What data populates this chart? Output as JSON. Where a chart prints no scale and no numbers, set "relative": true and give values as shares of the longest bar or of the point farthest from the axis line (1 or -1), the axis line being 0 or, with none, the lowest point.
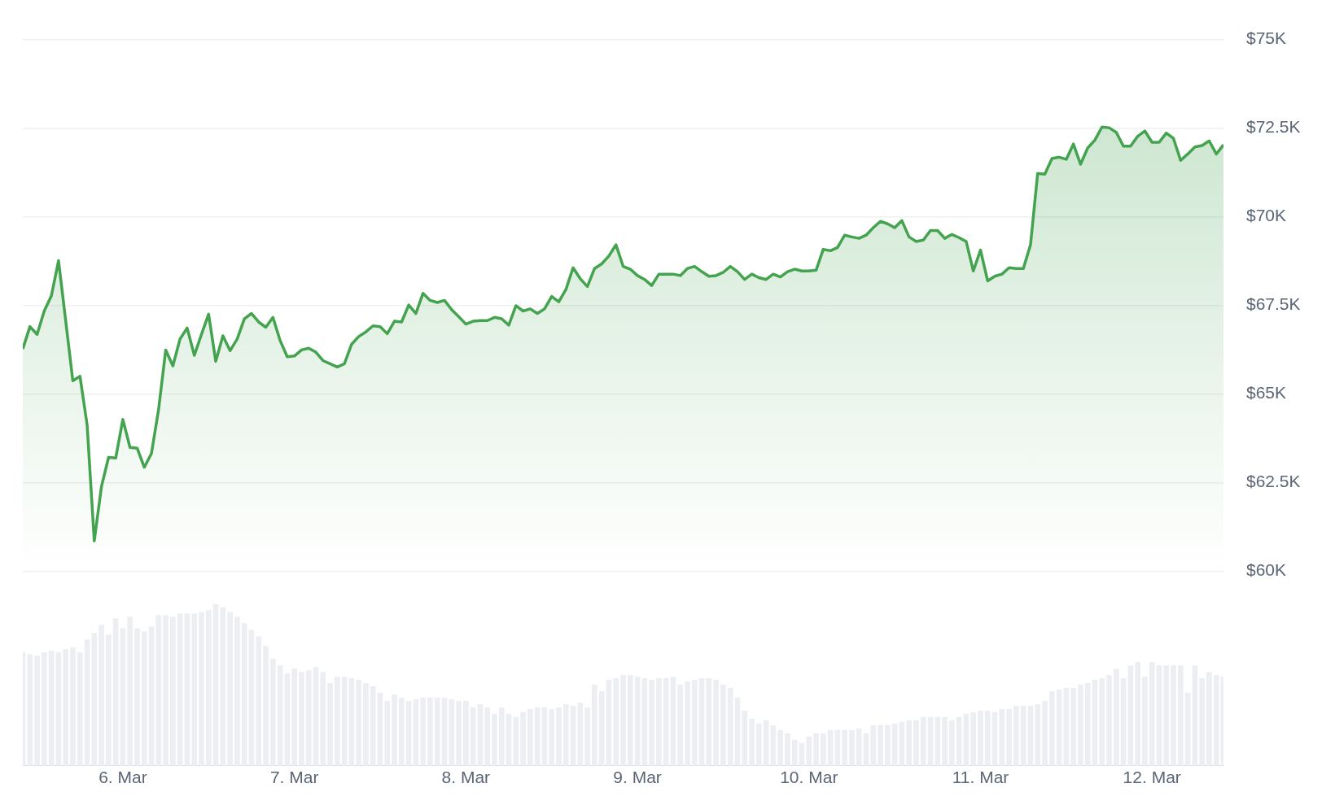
{
  "chart_data": [
    {
      "type": "area",
      "xlim": [
        "--03-05T10:00",
        "--03-12T10:00"
      ],
      "ylim": [
        60,
        75
      ],
      "yticks": [
        {
          "value": 60,
          "label": "$60K"
        },
        {
          "value": 62.5,
          "label": "$62.5K"
        },
        {
          "value": 65,
          "label": "$65K"
        },
        {
          "value": 67.5,
          "label": "$67.5K"
        },
        {
          "value": 70,
          "label": "$70K"
        },
        {
          "value": 72.5,
          "label": "$72.5K"
        },
        {
          "value": 75,
          "label": "$75K"
        }
      ],
      "tick_labels": "y",
      "grid": "y",
      "legend": false,
      "marker": "none",
      "line_style": "solid",
      "x": [
        "--03-05T10:00",
        "--03-05T11:00",
        "--03-05T12:00",
        "--03-05T13:00",
        "--03-05T14:00",
        "--03-05T15:00",
        "--03-05T16:00",
        "--03-05T17:00",
        "--03-05T18:00",
        "--03-05T19:00",
        "--03-05T20:00",
        "--03-05T21:00",
        "--03-05T22:00",
        "--03-05T23:00",
        "--03-06T00:00",
        "--03-06T01:00",
        "--03-06T02:00",
        "--03-06T03:00",
        "--03-06T04:00",
        "--03-06T05:00",
        "--03-06T06:00",
        "--03-06T07:00",
        "--03-06T08:00",
        "--03-06T09:00",
        "--03-06T10:00",
        "--03-06T11:00",
        "--03-06T12:00",
        "--03-06T13:00",
        "--03-06T14:00",
        "--03-06T15:00",
        "--03-06T16:00",
        "--03-06T17:00",
        "--03-06T18:00",
        "--03-06T19:00",
        "--03-06T20:00",
        "--03-06T21:00",
        "--03-06T22:00",
        "--03-06T23:00",
        "--03-07T00:00",
        "--03-07T01:00",
        "--03-07T02:00",
        "--03-07T03:00",
        "--03-07T04:00",
        "--03-07T05:00",
        "--03-07T06:00",
        "--03-07T07:00",
        "--03-07T08:00",
        "--03-07T09:00",
        "--03-07T10:00",
        "--03-07T11:00",
        "--03-07T12:00",
        "--03-07T13:00",
        "--03-07T14:00",
        "--03-07T15:00",
        "--03-07T16:00",
        "--03-07T17:00",
        "--03-07T18:00",
        "--03-07T19:00",
        "--03-07T20:00",
        "--03-07T21:00",
        "--03-07T22:00",
        "--03-07T23:00",
        "--03-08T00:00",
        "--03-08T01:00",
        "--03-08T02:00",
        "--03-08T03:00",
        "--03-08T04:00",
        "--03-08T05:00",
        "--03-08T06:00",
        "--03-08T07:00",
        "--03-08T08:00",
        "--03-08T09:00",
        "--03-08T10:00",
        "--03-08T11:00",
        "--03-08T12:00",
        "--03-08T13:00",
        "--03-08T14:00",
        "--03-08T15:00",
        "--03-08T16:00",
        "--03-08T17:00",
        "--03-08T18:00",
        "--03-08T19:00",
        "--03-08T20:00",
        "--03-08T21:00",
        "--03-08T22:00",
        "--03-08T23:00",
        "--03-09T00:00",
        "--03-09T01:00",
        "--03-09T02:00",
        "--03-09T03:00",
        "--03-09T04:00",
        "--03-09T05:00",
        "--03-09T06:00",
        "--03-09T07:00",
        "--03-09T08:00",
        "--03-09T09:00",
        "--03-09T10:00",
        "--03-09T11:00",
        "--03-09T12:00",
        "--03-09T13:00",
        "--03-09T14:00",
        "--03-09T15:00",
        "--03-09T16:00",
        "--03-09T17:00",
        "--03-09T18:00",
        "--03-09T19:00",
        "--03-09T20:00",
        "--03-09T21:00",
        "--03-09T22:00",
        "--03-09T23:00",
        "--03-10T00:00",
        "--03-10T01:00",
        "--03-10T02:00",
        "--03-10T03:00",
        "--03-10T04:00",
        "--03-10T05:00",
        "--03-10T06:00",
        "--03-10T07:00",
        "--03-10T08:00",
        "--03-10T09:00",
        "--03-10T10:00",
        "--03-10T11:00",
        "--03-10T12:00",
        "--03-10T13:00",
        "--03-10T14:00",
        "--03-10T15:00",
        "--03-10T16:00",
        "--03-10T17:00",
        "--03-10T18:00",
        "--03-10T19:00",
        "--03-10T20:00",
        "--03-10T21:00",
        "--03-10T22:00",
        "--03-10T23:00",
        "--03-11T00:00",
        "--03-11T01:00",
        "--03-11T02:00",
        "--03-11T03:00",
        "--03-11T04:00",
        "--03-11T05:00",
        "--03-11T06:00",
        "--03-11T07:00",
        "--03-11T08:00",
        "--03-11T09:00",
        "--03-11T10:00",
        "--03-11T11:00",
        "--03-11T12:00",
        "--03-11T13:00",
        "--03-11T14:00",
        "--03-11T15:00",
        "--03-11T16:00",
        "--03-11T17:00",
        "--03-11T18:00",
        "--03-11T19:00",
        "--03-11T20:00",
        "--03-11T21:00",
        "--03-11T22:00",
        "--03-11T23:00",
        "--03-12T00:00",
        "--03-12T01:00",
        "--03-12T02:00",
        "--03-12T03:00",
        "--03-12T04:00",
        "--03-12T05:00",
        "--03-12T06:00",
        "--03-12T07:00",
        "--03-12T08:00",
        "--03-12T09:00",
        "--03-12T10:00"
      ],
      "series": [
        {
          "color": "#44a34f",
          "values": [
            66.27,
            66.9,
            66.68,
            67.34,
            67.77,
            68.76,
            67.07,
            65.37,
            65.5,
            64.13,
            60.85,
            62.38,
            63.21,
            63.19,
            64.28,
            63.49,
            63.47,
            62.93,
            63.32,
            64.56,
            66.24,
            65.79,
            66.55,
            66.86,
            66.09,
            66.68,
            67.25,
            65.92,
            66.64,
            66.22,
            66.55,
            67.12,
            67.27,
            67.03,
            66.88,
            67.16,
            66.51,
            66.05,
            66.07,
            66.24,
            66.29,
            66.18,
            65.94,
            65.85,
            65.76,
            65.85,
            66.4,
            66.62,
            66.75,
            66.92,
            66.9,
            66.7,
            67.05,
            67.03,
            67.51,
            67.27,
            67.84,
            67.64,
            67.58,
            67.64,
            67.38,
            67.18,
            66.97,
            67.05,
            67.07,
            67.07,
            67.16,
            67.12,
            66.94,
            67.49,
            67.34,
            67.4,
            67.27,
            67.4,
            67.75,
            67.6,
            67.95,
            68.56,
            68.25,
            68.03,
            68.54,
            68.67,
            68.89,
            69.21,
            68.6,
            68.52,
            68.34,
            68.23,
            68.06,
            68.38,
            68.38,
            68.38,
            68.34,
            68.54,
            68.6,
            68.45,
            68.32,
            68.34,
            68.43,
            68.6,
            68.45,
            68.23,
            68.38,
            68.28,
            68.23,
            68.38,
            68.3,
            68.45,
            68.52,
            68.47,
            68.47,
            68.49,
            69.08,
            69.04,
            69.13,
            69.48,
            69.43,
            69.39,
            69.48,
            69.69,
            69.87,
            69.8,
            69.69,
            69.89,
            69.43,
            69.3,
            69.34,
            69.61,
            69.61,
            69.39,
            69.5,
            69.41,
            69.3,
            68.47,
            69.06,
            68.19,
            68.32,
            68.38,
            68.56,
            68.54,
            68.54,
            69.21,
            71.22,
            71.2,
            71.64,
            71.68,
            71.62,
            72.05,
            71.48,
            71.94,
            72.16,
            72.53,
            72.51,
            72.38,
            71.99,
            71.99,
            72.27,
            72.42,
            72.1,
            72.1,
            72.36,
            72.21,
            71.59,
            71.77,
            71.97,
            72.01,
            72.14,
            71.77,
            72.03
          ]
        }
      ]
    },
    {
      "type": "bar",
      "relative": true,
      "xlim": [
        "--03-05T10:00",
        "--03-12T10:00"
      ],
      "xticks": [
        {
          "value": "--03-06",
          "label": "6. Mar"
        },
        {
          "value": "--03-07",
          "label": "7. Mar"
        },
        {
          "value": "--03-08",
          "label": "8. Mar"
        },
        {
          "value": "--03-09",
          "label": "9. Mar"
        },
        {
          "value": "--03-10",
          "label": "10. Mar"
        },
        {
          "value": "--03-11",
          "label": "11. Mar"
        },
        {
          "value": "--03-12",
          "label": "12. Mar"
        }
      ],
      "tick_labels": "x",
      "grid": false,
      "legend": false,
      "x": [
        "--03-05T10:00",
        "--03-05T11:00",
        "--03-05T12:00",
        "--03-05T13:00",
        "--03-05T14:00",
        "--03-05T15:00",
        "--03-05T16:00",
        "--03-05T17:00",
        "--03-05T18:00",
        "--03-05T19:00",
        "--03-05T20:00",
        "--03-05T21:00",
        "--03-05T22:00",
        "--03-05T23:00",
        "--03-06T00:00",
        "--03-06T01:00",
        "--03-06T02:00",
        "--03-06T03:00",
        "--03-06T04:00",
        "--03-06T05:00",
        "--03-06T06:00",
        "--03-06T07:00",
        "--03-06T08:00",
        "--03-06T09:00",
        "--03-06T10:00",
        "--03-06T11:00",
        "--03-06T12:00",
        "--03-06T13:00",
        "--03-06T14:00",
        "--03-06T15:00",
        "--03-06T16:00",
        "--03-06T17:00",
        "--03-06T18:00",
        "--03-06T19:00",
        "--03-06T20:00",
        "--03-06T21:00",
        "--03-06T22:00",
        "--03-06T23:00",
        "--03-07T00:00",
        "--03-07T01:00",
        "--03-07T02:00",
        "--03-07T03:00",
        "--03-07T04:00",
        "--03-07T05:00",
        "--03-07T06:00",
        "--03-07T07:00",
        "--03-07T08:00",
        "--03-07T09:00",
        "--03-07T10:00",
        "--03-07T11:00",
        "--03-07T12:00",
        "--03-07T13:00",
        "--03-07T14:00",
        "--03-07T15:00",
        "--03-07T16:00",
        "--03-07T17:00",
        "--03-07T18:00",
        "--03-07T19:00",
        "--03-07T20:00",
        "--03-07T21:00",
        "--03-07T22:00",
        "--03-07T23:00",
        "--03-08T00:00",
        "--03-08T01:00",
        "--03-08T02:00",
        "--03-08T03:00",
        "--03-08T04:00",
        "--03-08T05:00",
        "--03-08T06:00",
        "--03-08T07:00",
        "--03-08T08:00",
        "--03-08T09:00",
        "--03-08T10:00",
        "--03-08T11:00",
        "--03-08T12:00",
        "--03-08T13:00",
        "--03-08T14:00",
        "--03-08T15:00",
        "--03-08T16:00",
        "--03-08T17:00",
        "--03-08T18:00",
        "--03-08T19:00",
        "--03-08T20:00",
        "--03-08T21:00",
        "--03-08T22:00",
        "--03-08T23:00",
        "--03-09T00:00",
        "--03-09T01:00",
        "--03-09T02:00",
        "--03-09T03:00",
        "--03-09T04:00",
        "--03-09T05:00",
        "--03-09T06:00",
        "--03-09T07:00",
        "--03-09T08:00",
        "--03-09T09:00",
        "--03-09T10:00",
        "--03-09T11:00",
        "--03-09T12:00",
        "--03-09T13:00",
        "--03-09T14:00",
        "--03-09T15:00",
        "--03-09T16:00",
        "--03-09T17:00",
        "--03-09T18:00",
        "--03-09T19:00",
        "--03-09T20:00",
        "--03-09T21:00",
        "--03-09T22:00",
        "--03-09T23:00",
        "--03-10T00:00",
        "--03-10T01:00",
        "--03-10T02:00",
        "--03-10T03:00",
        "--03-10T04:00",
        "--03-10T05:00",
        "--03-10T06:00",
        "--03-10T07:00",
        "--03-10T08:00",
        "--03-10T09:00",
        "--03-10T10:00",
        "--03-10T11:00",
        "--03-10T12:00",
        "--03-10T13:00",
        "--03-10T14:00",
        "--03-10T15:00",
        "--03-10T16:00",
        "--03-10T17:00",
        "--03-10T18:00",
        "--03-10T19:00",
        "--03-10T20:00",
        "--03-10T21:00",
        "--03-10T22:00",
        "--03-10T23:00",
        "--03-11T00:00",
        "--03-11T01:00",
        "--03-11T02:00",
        "--03-11T03:00",
        "--03-11T04:00",
        "--03-11T05:00",
        "--03-11T06:00",
        "--03-11T07:00",
        "--03-11T08:00",
        "--03-11T09:00",
        "--03-11T10:00",
        "--03-11T11:00",
        "--03-11T12:00",
        "--03-11T13:00",
        "--03-11T14:00",
        "--03-11T15:00",
        "--03-11T16:00",
        "--03-11T17:00",
        "--03-11T18:00",
        "--03-11T19:00",
        "--03-11T20:00",
        "--03-11T21:00",
        "--03-11T22:00",
        "--03-11T23:00",
        "--03-12T00:00",
        "--03-12T01:00",
        "--03-12T02:00",
        "--03-12T03:00",
        "--03-12T04:00",
        "--03-12T05:00",
        "--03-12T06:00",
        "--03-12T07:00",
        "--03-12T08:00",
        "--03-12T09:00",
        "--03-12T10:00"
      ],
      "series": [
        {
          "color": "#eceef2",
          "values": [
            0.7,
            0.69,
            0.68,
            0.7,
            0.71,
            0.7,
            0.72,
            0.73,
            0.7,
            0.78,
            0.82,
            0.87,
            0.81,
            0.91,
            0.85,
            0.92,
            0.85,
            0.83,
            0.86,
            0.93,
            0.93,
            0.92,
            0.94,
            0.94,
            0.94,
            0.95,
            0.96,
            1.0,
            0.98,
            0.95,
            0.92,
            0.88,
            0.84,
            0.8,
            0.74,
            0.66,
            0.62,
            0.57,
            0.6,
            0.58,
            0.59,
            0.61,
            0.58,
            0.51,
            0.55,
            0.55,
            0.54,
            0.53,
            0.51,
            0.49,
            0.45,
            0.4,
            0.44,
            0.42,
            0.4,
            0.41,
            0.42,
            0.42,
            0.42,
            0.42,
            0.41,
            0.4,
            0.4,
            0.36,
            0.38,
            0.36,
            0.32,
            0.36,
            0.32,
            0.3,
            0.33,
            0.35,
            0.36,
            0.36,
            0.35,
            0.36,
            0.38,
            0.37,
            0.39,
            0.36,
            0.5,
            0.46,
            0.53,
            0.54,
            0.56,
            0.56,
            0.55,
            0.54,
            0.53,
            0.54,
            0.54,
            0.55,
            0.5,
            0.52,
            0.53,
            0.54,
            0.54,
            0.53,
            0.5,
            0.48,
            0.42,
            0.34,
            0.29,
            0.26,
            0.28,
            0.25,
            0.22,
            0.2,
            0.16,
            0.14,
            0.18,
            0.2,
            0.2,
            0.22,
            0.22,
            0.22,
            0.22,
            0.23,
            0.2,
            0.25,
            0.25,
            0.25,
            0.26,
            0.27,
            0.28,
            0.28,
            0.3,
            0.3,
            0.3,
            0.3,
            0.28,
            0.3,
            0.32,
            0.33,
            0.34,
            0.34,
            0.33,
            0.35,
            0.35,
            0.37,
            0.37,
            0.37,
            0.38,
            0.4,
            0.46,
            0.47,
            0.48,
            0.48,
            0.5,
            0.51,
            0.53,
            0.54,
            0.56,
            0.6,
            0.54,
            0.62,
            0.64,
            0.55,
            0.64,
            0.62,
            0.62,
            0.62,
            0.62,
            0.45,
            0.62,
            0.54,
            0.58,
            0.56,
            0.55
          ]
        }
      ]
    }
  ]
}
